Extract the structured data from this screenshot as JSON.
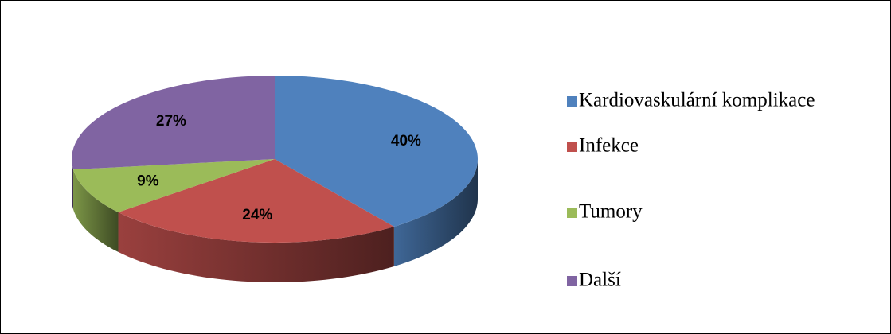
{
  "chart_data": {
    "type": "pie",
    "categories": [
      "Kardiovaskulární komplikace",
      "Infekce",
      "Tumory",
      "Další"
    ],
    "values": [
      40,
      24,
      9,
      27
    ],
    "value_labels": [
      "40%",
      "24%",
      "9%",
      "27%"
    ],
    "colors": [
      "#4f81bd",
      "#c0504d",
      "#9bbb59",
      "#8064a2"
    ],
    "legend": "right"
  }
}
